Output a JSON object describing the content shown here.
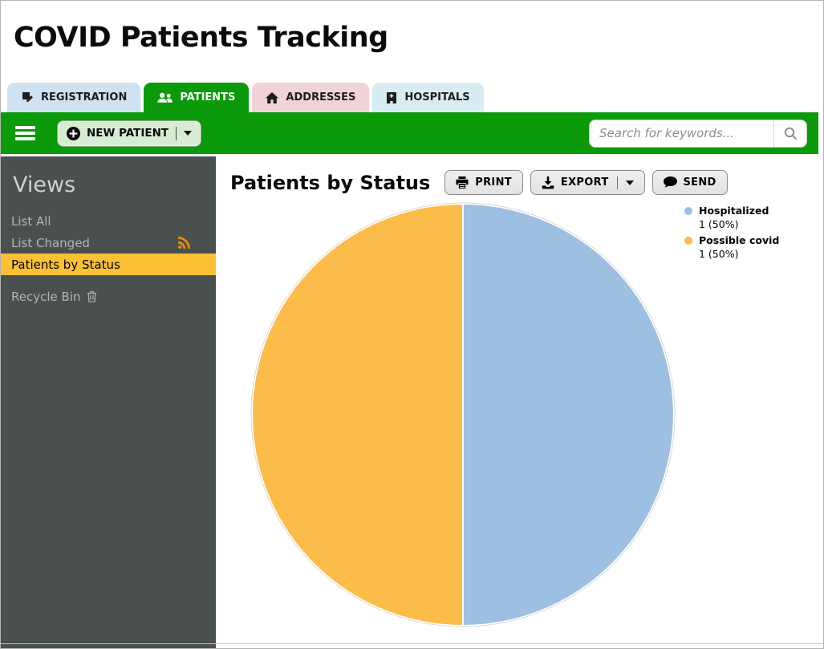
{
  "app": {
    "title": "COVID Patients Tracking"
  },
  "tabs": {
    "items": [
      {
        "label": "REGISTRATION",
        "icon": "registration-icon",
        "active": false
      },
      {
        "label": "PATIENTS",
        "icon": "patients-icon",
        "active": true
      },
      {
        "label": "ADDRESSES",
        "icon": "home-icon",
        "active": false
      },
      {
        "label": "HOSPITALS",
        "icon": "hospital-icon",
        "active": false
      }
    ]
  },
  "toolbar": {
    "new_patient_label": "NEW PATIENT",
    "search_placeholder": "Search for keywords...",
    "search_value": ""
  },
  "sidebar": {
    "heading": "Views",
    "items": [
      {
        "label": "List All",
        "selected": false
      },
      {
        "label": "List Changed",
        "icon": "rss-icon",
        "selected": false
      },
      {
        "label": "Patients by Status",
        "selected": true
      },
      {
        "label": "Recycle Bin",
        "icon": "trash-icon",
        "selected": false
      }
    ]
  },
  "main": {
    "heading": "Patients by Status",
    "print_label": "PRINT",
    "export_label": "EXPORT",
    "send_label": "SEND"
  },
  "chart_data": {
    "type": "pie",
    "title": "Patients by Status",
    "slices": [
      {
        "name": "Hospitalized",
        "value": 1,
        "percent": 50,
        "color": "#9dc0e2",
        "legend_value_label": "1 (50%)"
      },
      {
        "name": "Possible covid",
        "value": 1,
        "percent": 50,
        "color": "#fcbc49",
        "legend_value_label": "1 (50%)"
      }
    ],
    "legend_position": "right",
    "start_angle_deg": -90,
    "direction": "clockwise"
  },
  "colors": {
    "toolbar_green": "#0a9a0a",
    "tab_registration_bg": "#cfe2f1",
    "tab_patients_bg": "#0a9a0a",
    "tab_addresses_bg": "#f0d3d7",
    "tab_hospitals_bg": "#d8edf2",
    "new_patient_btn_bg": "#d8ebd3",
    "sidebar_bg": "#4a4f50",
    "sidebar_selected_bg": "#fcc133",
    "rss_orange": "#e98b0c",
    "pie_stroke": "#ffffff",
    "pie_rim": "#d9d9d9"
  }
}
